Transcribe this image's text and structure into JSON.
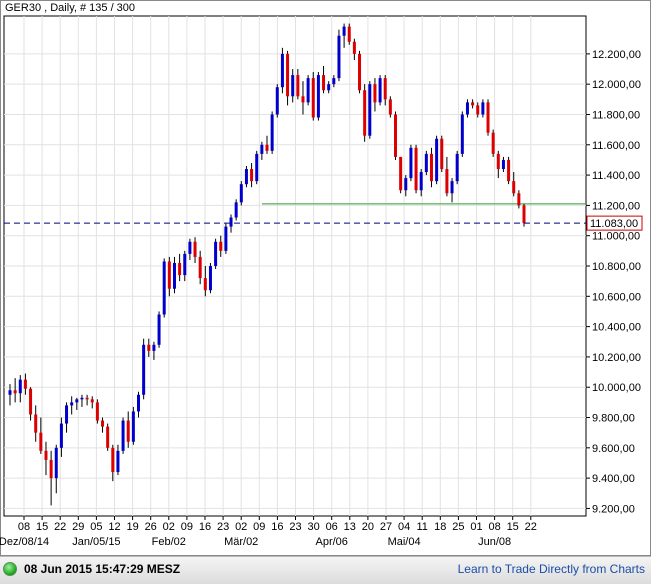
{
  "header": {
    "title": "GER30 , Daily, # 135 / 300"
  },
  "status_bar": {
    "timestamp": "08 Jun 2015 15:47:29 MESZ",
    "link_text": "Learn to Trade Directly from Charts"
  },
  "colors": {
    "up": "#0000cc",
    "down": "#dd0000",
    "grid": "#e2e2e2",
    "support_line": "#2e9e2e",
    "price_line": "#000080",
    "price_label": "#cc0000"
  },
  "chart_data": {
    "type": "candlestick",
    "title": "GER30 , Daily, # 135 / 300",
    "ylim": [
      9150,
      12450
    ],
    "y_ticks": [
      9200,
      9400,
      9600,
      9800,
      10000,
      10200,
      10400,
      10600,
      10800,
      11000,
      11200,
      11400,
      11600,
      11800,
      12000,
      12200
    ],
    "y_tick_labels": [
      "9.200,00",
      "9.400,00",
      "9.600,00",
      "9.800,00",
      "10.000,00",
      "10.200,00",
      "10.400,00",
      "10.600,00",
      "10.800,00",
      "11.000,00",
      "11.200,00",
      "11.400,00",
      "11.600,00",
      "11.800,00",
      "12.000,00",
      "12.200,00"
    ],
    "x_day_labels": [
      "08",
      "15",
      "22",
      "29",
      "05",
      "12",
      "19",
      "26",
      "02",
      "09",
      "16",
      "23",
      "02",
      "09",
      "16",
      "23",
      "30",
      "06",
      "13",
      "20",
      "27",
      "04",
      "11",
      "18",
      "25",
      "01",
      "08",
      "15",
      "22"
    ],
    "x_month_labels": [
      "Dez/08/14",
      "Jan/05/15",
      "Feb/02",
      "Mär/02",
      "Apr/06",
      "Mai/04",
      "Jun/08"
    ],
    "current_price": 11083,
    "current_price_label": "11.083,00",
    "support_level": 11210,
    "grid": true,
    "candles": [
      [
        9950,
        10020,
        9880,
        9980
      ],
      [
        9980,
        10060,
        9900,
        9960
      ],
      [
        9960,
        10080,
        9900,
        10050
      ],
      [
        10050,
        10090,
        9950,
        9990
      ],
      [
        9990,
        10000,
        9780,
        9820
      ],
      [
        9820,
        9880,
        9640,
        9700
      ],
      [
        9700,
        9800,
        9560,
        9580
      ],
      [
        9580,
        9640,
        9420,
        9520
      ],
      [
        9520,
        9580,
        9220,
        9400
      ],
      [
        9400,
        9620,
        9300,
        9600
      ],
      [
        9600,
        9800,
        9540,
        9760
      ],
      [
        9760,
        9900,
        9700,
        9880
      ],
      [
        9880,
        9940,
        9820,
        9900
      ],
      [
        9900,
        9930,
        9850,
        9920
      ],
      [
        9920,
        9950,
        9870,
        9930
      ],
      [
        9930,
        9950,
        9880,
        9920
      ],
      [
        9920,
        9940,
        9860,
        9900
      ],
      [
        9900,
        9920,
        9760,
        9780
      ],
      [
        9780,
        9800,
        9700,
        9740
      ],
      [
        9740,
        9760,
        9580,
        9600
      ],
      [
        9600,
        9620,
        9380,
        9440
      ],
      [
        9440,
        9620,
        9420,
        9580
      ],
      [
        9580,
        9800,
        9560,
        9780
      ],
      [
        9780,
        9840,
        9600,
        9640
      ],
      [
        9640,
        9870,
        9620,
        9840
      ],
      [
        9840,
        9970,
        9800,
        9950
      ],
      [
        9950,
        10320,
        9920,
        10280
      ],
      [
        10280,
        10320,
        10200,
        10240
      ],
      [
        10240,
        10300,
        10180,
        10280
      ],
      [
        10280,
        10500,
        10260,
        10480
      ],
      [
        10480,
        10850,
        10460,
        10830
      ],
      [
        10830,
        10860,
        10600,
        10650
      ],
      [
        10650,
        10860,
        10620,
        10820
      ],
      [
        10820,
        10880,
        10700,
        10740
      ],
      [
        10740,
        10900,
        10700,
        10880
      ],
      [
        10880,
        10980,
        10840,
        10960
      ],
      [
        10960,
        10990,
        10820,
        10860
      ],
      [
        10860,
        10900,
        10680,
        10720
      ],
      [
        10720,
        10800,
        10600,
        10640
      ],
      [
        10640,
        10820,
        10620,
        10800
      ],
      [
        10800,
        10980,
        10780,
        10960
      ],
      [
        10960,
        11000,
        10860,
        10900
      ],
      [
        10900,
        11080,
        10880,
        11060
      ],
      [
        11060,
        11140,
        11020,
        11120
      ],
      [
        11120,
        11240,
        11100,
        11220
      ],
      [
        11220,
        11360,
        11200,
        11340
      ],
      [
        11340,
        11460,
        11320,
        11440
      ],
      [
        11440,
        11480,
        11320,
        11360
      ],
      [
        11360,
        11560,
        11340,
        11540
      ],
      [
        11540,
        11620,
        11500,
        11600
      ],
      [
        11600,
        11660,
        11540,
        11560
      ],
      [
        11560,
        11820,
        11540,
        11800
      ],
      [
        11800,
        12000,
        11780,
        11980
      ],
      [
        11980,
        12240,
        11940,
        12200
      ],
      [
        12200,
        12220,
        11860,
        11920
      ],
      [
        11920,
        12100,
        11880,
        12060
      ],
      [
        12060,
        12100,
        11900,
        11920
      ],
      [
        11920,
        12020,
        11800,
        11880
      ],
      [
        11880,
        12060,
        11860,
        12040
      ],
      [
        12040,
        12080,
        11760,
        11780
      ],
      [
        11780,
        12080,
        11760,
        12060
      ],
      [
        12060,
        12120,
        11940,
        11960
      ],
      [
        11960,
        12020,
        11940,
        12000
      ],
      [
        12000,
        12060,
        11980,
        12040
      ],
      [
        12040,
        12360,
        12020,
        12320
      ],
      [
        12320,
        12400,
        12240,
        12380
      ],
      [
        12380,
        12400,
        12260,
        12280
      ],
      [
        12280,
        12300,
        12160,
        12200
      ],
      [
        12200,
        12220,
        11940,
        11960
      ],
      [
        11960,
        12000,
        11620,
        11660
      ],
      [
        11660,
        12020,
        11640,
        12000
      ],
      [
        12000,
        12040,
        11820,
        11880
      ],
      [
        11880,
        12060,
        11860,
        12040
      ],
      [
        12040,
        12060,
        11860,
        11900
      ],
      [
        11900,
        11920,
        11780,
        11800
      ],
      [
        11800,
        11820,
        11500,
        11520
      ],
      [
        11520,
        11520,
        11280,
        11300
      ],
      [
        11300,
        11400,
        11260,
        11380
      ],
      [
        11380,
        11600,
        11360,
        11580
      ],
      [
        11580,
        11600,
        11280,
        11300
      ],
      [
        11300,
        11440,
        11260,
        11420
      ],
      [
        11420,
        11560,
        11400,
        11540
      ],
      [
        11540,
        11580,
        11320,
        11360
      ],
      [
        11360,
        11660,
        11340,
        11640
      ],
      [
        11640,
        11660,
        11420,
        11440
      ],
      [
        11440,
        11520,
        11260,
        11280
      ],
      [
        11280,
        11380,
        11220,
        11360
      ],
      [
        11360,
        11560,
        11340,
        11540
      ],
      [
        11540,
        11820,
        11520,
        11800
      ],
      [
        11800,
        11900,
        11780,
        11880
      ],
      [
        11880,
        11900,
        11840,
        11860
      ],
      [
        11860,
        11880,
        11780,
        11800
      ],
      [
        11800,
        11900,
        11780,
        11880
      ],
      [
        11880,
        11900,
        11660,
        11680
      ],
      [
        11680,
        11700,
        11520,
        11540
      ],
      [
        11540,
        11560,
        11380,
        11440
      ],
      [
        11440,
        11520,
        11420,
        11500
      ],
      [
        11500,
        11520,
        11340,
        11360
      ],
      [
        11360,
        11420,
        11260,
        11280
      ],
      [
        11280,
        11300,
        11180,
        11200
      ],
      [
        11200,
        11210,
        11060,
        11083
      ]
    ]
  }
}
